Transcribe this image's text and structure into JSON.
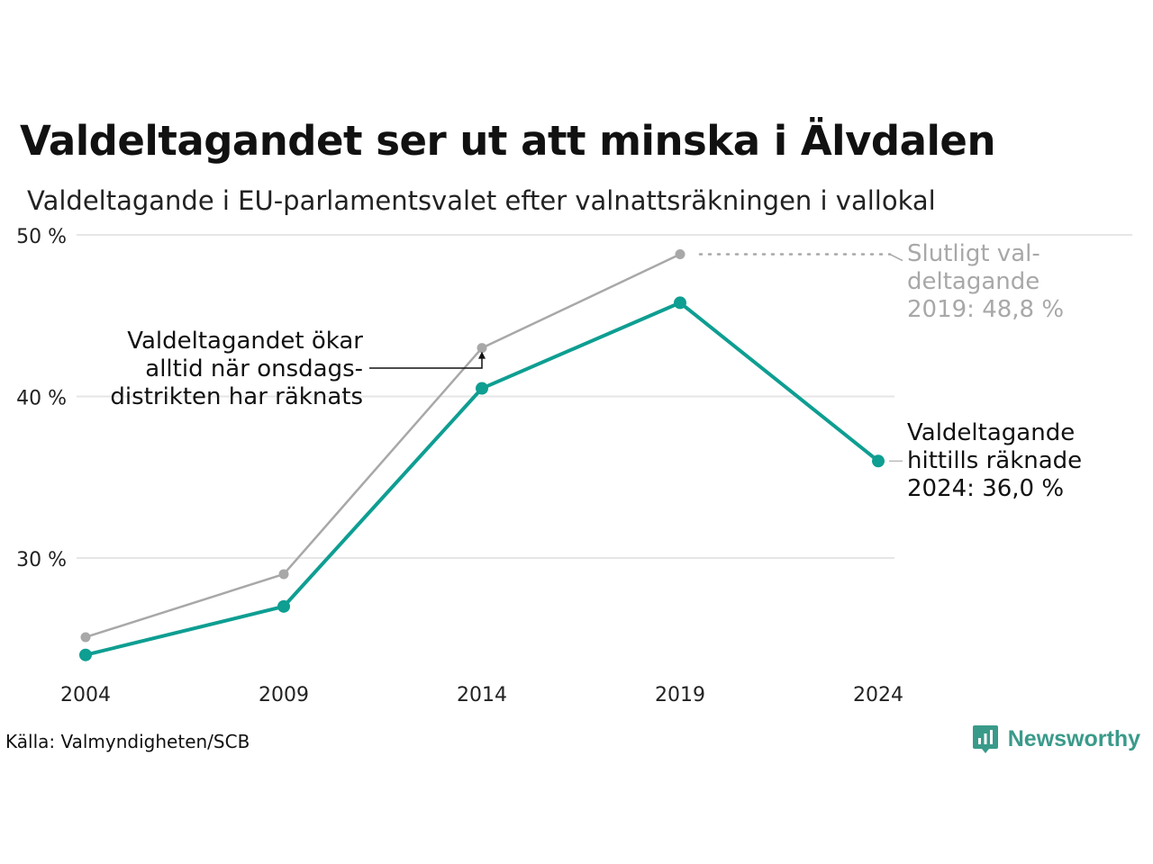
{
  "title": "Valdeltagandet ser ut att minska i Älvdalen",
  "subtitle": "Valdeltagande i EU-parlamentsvalet efter valnattsräkningen i vallokal",
  "source": "Källa: Valmyndigheten/SCB",
  "brand": "Newsworthy",
  "colors": {
    "counted": "#0e9e92",
    "final": "#a8a8a8",
    "grid": "#e6e6e6",
    "text": "#1a1a1a"
  },
  "chart_data": {
    "type": "line",
    "x": [
      "2004",
      "2009",
      "2014",
      "2019",
      "2024"
    ],
    "y_ticks": [
      "30 %",
      "40 %",
      "50 %"
    ],
    "ylim": [
      23,
      50
    ],
    "grid": true,
    "series": [
      {
        "key": "final",
        "values": [
          25.1,
          29.0,
          43.0,
          48.8,
          null
        ]
      },
      {
        "key": "counted",
        "values": [
          24.0,
          27.0,
          40.5,
          45.8,
          36.0
        ]
      }
    ],
    "annotations": {
      "wednesday": [
        "Valdeltagandet ökar",
        "alltid när onsdags-",
        "distrikten har räknats"
      ],
      "final_2019": [
        "Slutligt val-",
        "deltagande",
        "2019: 48,8 %"
      ],
      "counted_2024": [
        "Valdeltagande",
        "hittills räknade",
        "2024: 36,0 %"
      ]
    }
  }
}
